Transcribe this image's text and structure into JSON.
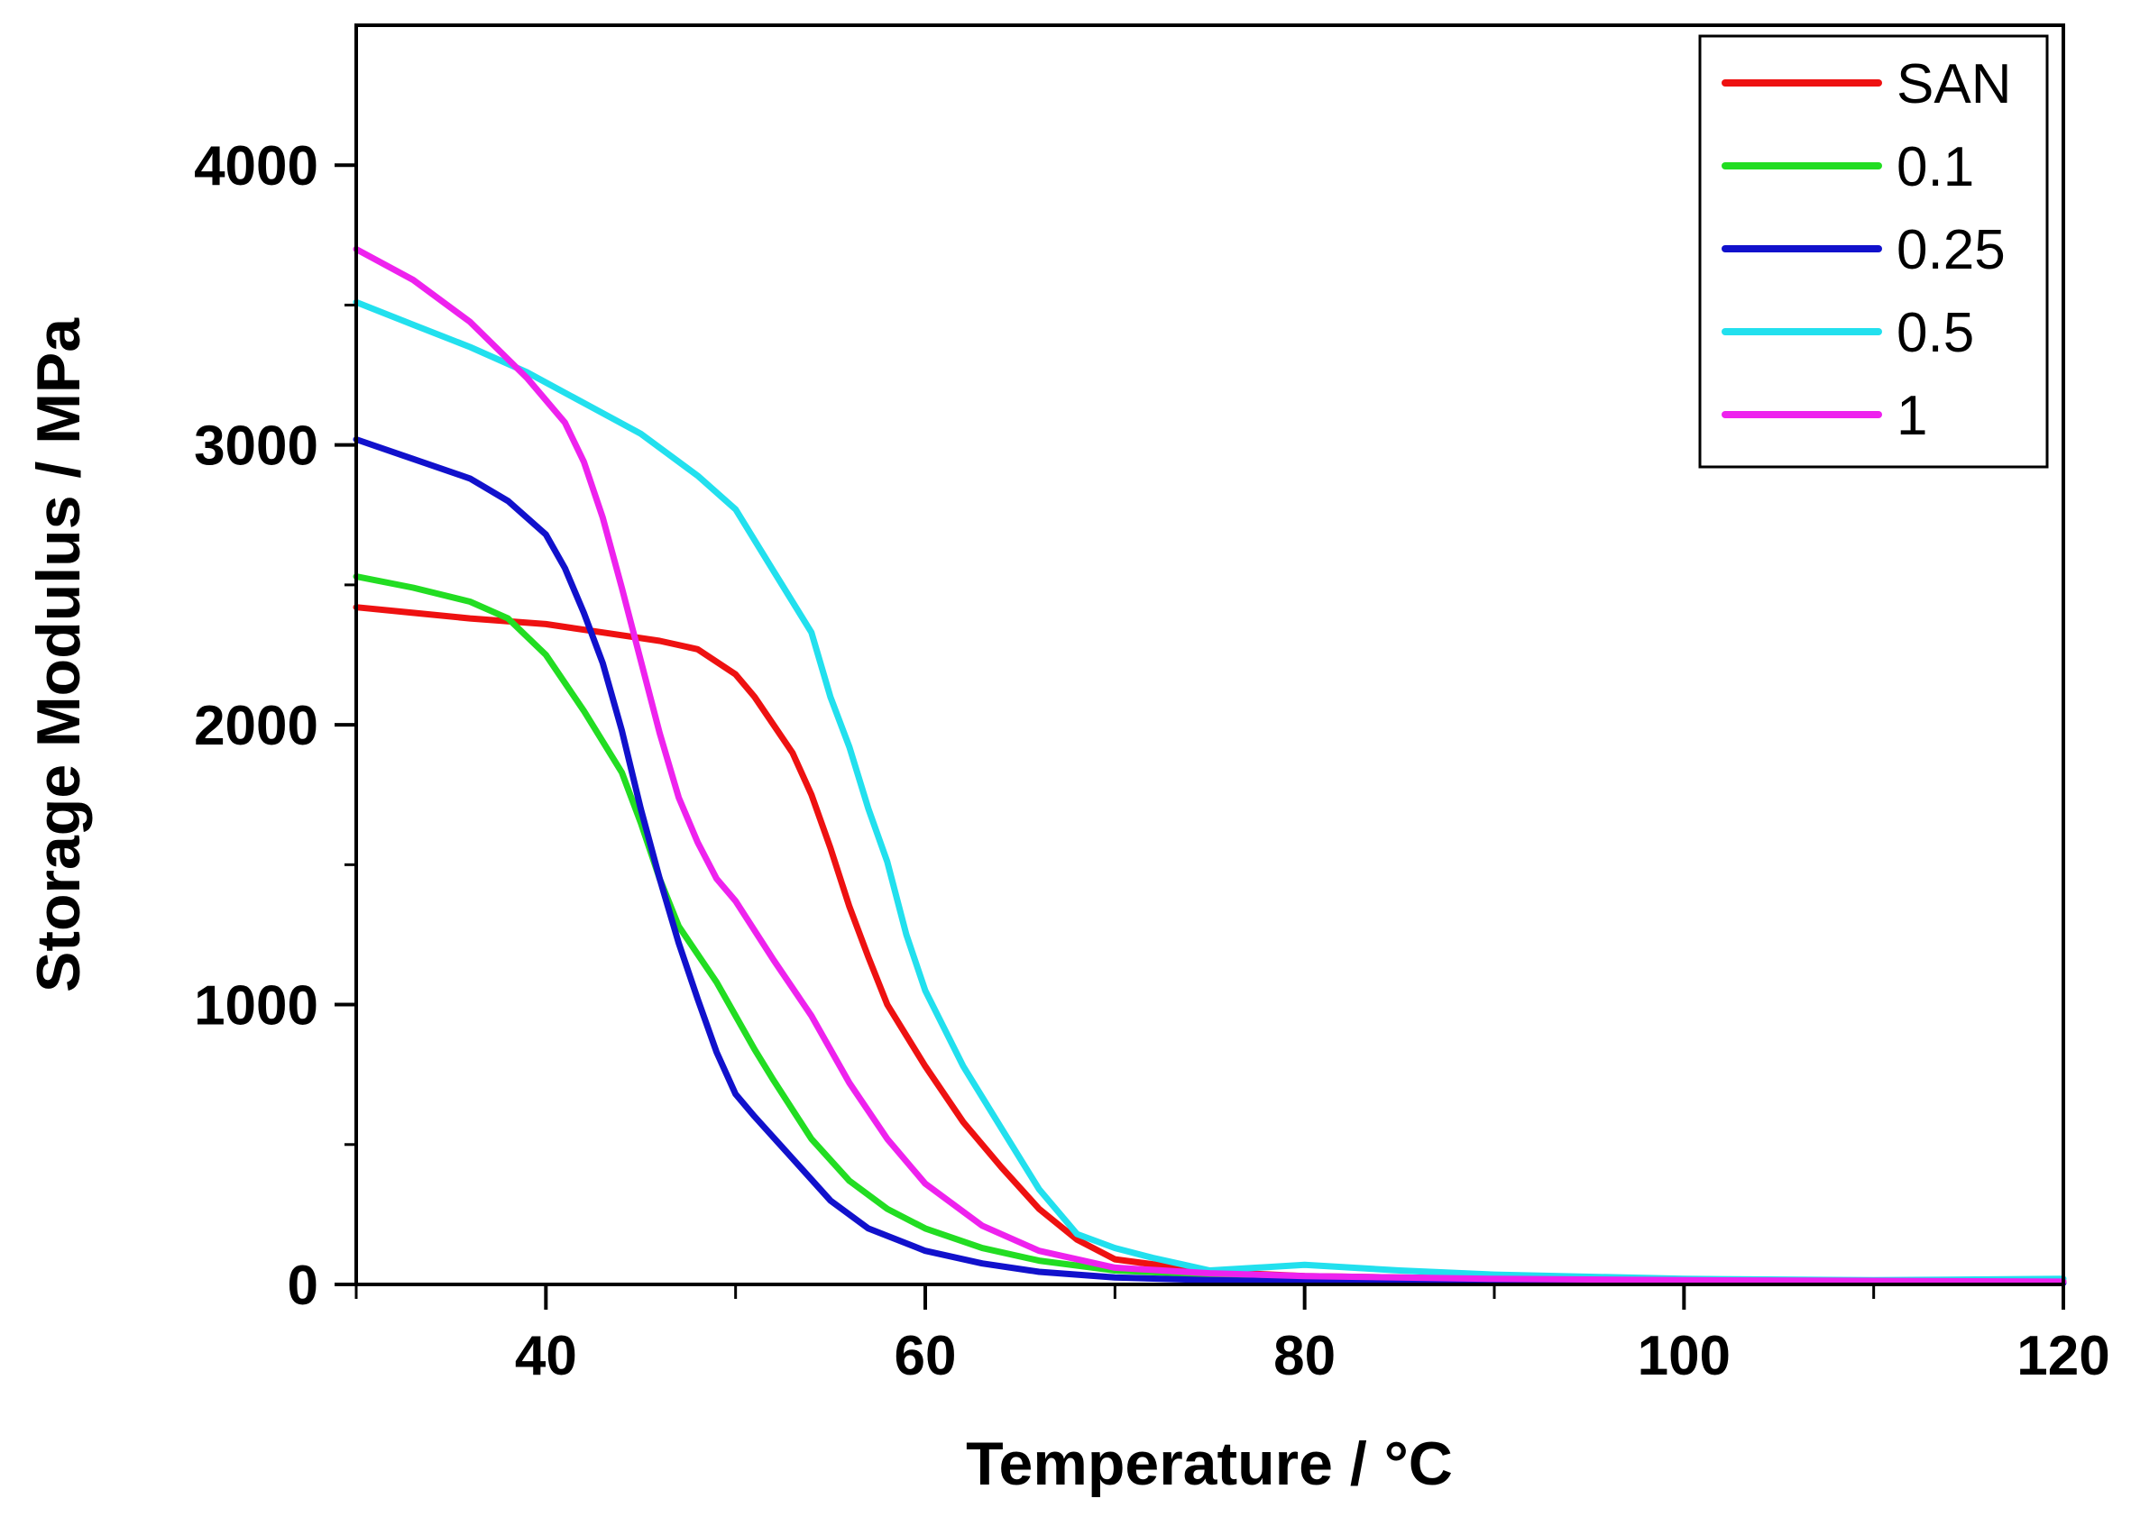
{
  "chart_data": {
    "type": "line",
    "title": "",
    "xlabel": "Temperature / °C",
    "ylabel": "Storage Modulus / MPa",
    "xlim": [
      30,
      120
    ],
    "ylim": [
      0,
      4500
    ],
    "xticks": [
      40,
      60,
      80,
      100,
      120
    ],
    "yticks": [
      0,
      1000,
      2000,
      3000,
      4000
    ],
    "xtick_labels": [
      "40",
      "60",
      "80",
      "100",
      "120"
    ],
    "ytick_labels": [
      "0",
      "1000",
      "2000",
      "3000",
      "4000"
    ],
    "legend_position": "top-right",
    "series": [
      {
        "name": "SAN",
        "color": "#ee1111",
        "x": [
          30,
          33,
          36,
          40,
          43,
          46,
          48,
          50,
          51,
          53,
          54,
          55,
          56,
          57,
          58,
          60,
          62,
          64,
          66,
          68,
          70,
          75,
          80,
          90,
          100,
          110,
          120
        ],
        "y": [
          2420,
          2400,
          2380,
          2360,
          2330,
          2300,
          2270,
          2180,
          2100,
          1900,
          1750,
          1560,
          1350,
          1170,
          1000,
          780,
          580,
          420,
          270,
          160,
          90,
          45,
          30,
          20,
          15,
          10,
          10
        ]
      },
      {
        "name": "0.1",
        "color": "#22dd22",
        "x": [
          30,
          33,
          36,
          38,
          40,
          42,
          44,
          45,
          46,
          47,
          48,
          49,
          50,
          51,
          52,
          54,
          56,
          58,
          60,
          63,
          66,
          70,
          75,
          80,
          90,
          100,
          120
        ],
        "y": [
          2530,
          2490,
          2440,
          2380,
          2250,
          2050,
          1830,
          1650,
          1450,
          1280,
          1180,
          1080,
          960,
          840,
          730,
          520,
          370,
          270,
          200,
          130,
          85,
          50,
          35,
          25,
          15,
          12,
          10
        ]
      },
      {
        "name": "0.25",
        "color": "#1111cc",
        "x": [
          30,
          33,
          36,
          38,
          40,
          41,
          42,
          43,
          44,
          45,
          46,
          47,
          48,
          49,
          50,
          51,
          53,
          55,
          57,
          60,
          63,
          66,
          70,
          75,
          80,
          100,
          120
        ],
        "y": [
          3020,
          2950,
          2880,
          2800,
          2680,
          2560,
          2400,
          2220,
          1980,
          1700,
          1450,
          1220,
          1020,
          830,
          680,
          600,
          450,
          300,
          200,
          120,
          75,
          45,
          25,
          15,
          10,
          8,
          5
        ]
      },
      {
        "name": "0.5",
        "color": "#22e0ee",
        "x": [
          30,
          33,
          36,
          39,
          42,
          45,
          48,
          50,
          52,
          54,
          55,
          56,
          57,
          58,
          59,
          60,
          62,
          64,
          66,
          68,
          70,
          72,
          75,
          80,
          85,
          90,
          100,
          110,
          120
        ],
        "y": [
          3510,
          3430,
          3350,
          3260,
          3150,
          3040,
          2890,
          2770,
          2550,
          2330,
          2100,
          1920,
          1700,
          1510,
          1250,
          1050,
          780,
          560,
          340,
          180,
          130,
          95,
          50,
          70,
          50,
          35,
          20,
          15,
          20
        ]
      },
      {
        "name": "1",
        "color": "#ee22ee",
        "x": [
          30,
          33,
          36,
          39,
          41,
          42,
          43,
          44,
          45,
          46,
          47,
          48,
          49,
          50,
          52,
          54,
          56,
          58,
          60,
          63,
          66,
          70,
          75,
          80,
          90,
          100,
          120
        ],
        "y": [
          3700,
          3590,
          3440,
          3240,
          3080,
          2940,
          2740,
          2490,
          2230,
          1970,
          1740,
          1580,
          1450,
          1370,
          1160,
          960,
          720,
          520,
          360,
          210,
          120,
          60,
          40,
          30,
          20,
          15,
          10
        ]
      }
    ]
  }
}
